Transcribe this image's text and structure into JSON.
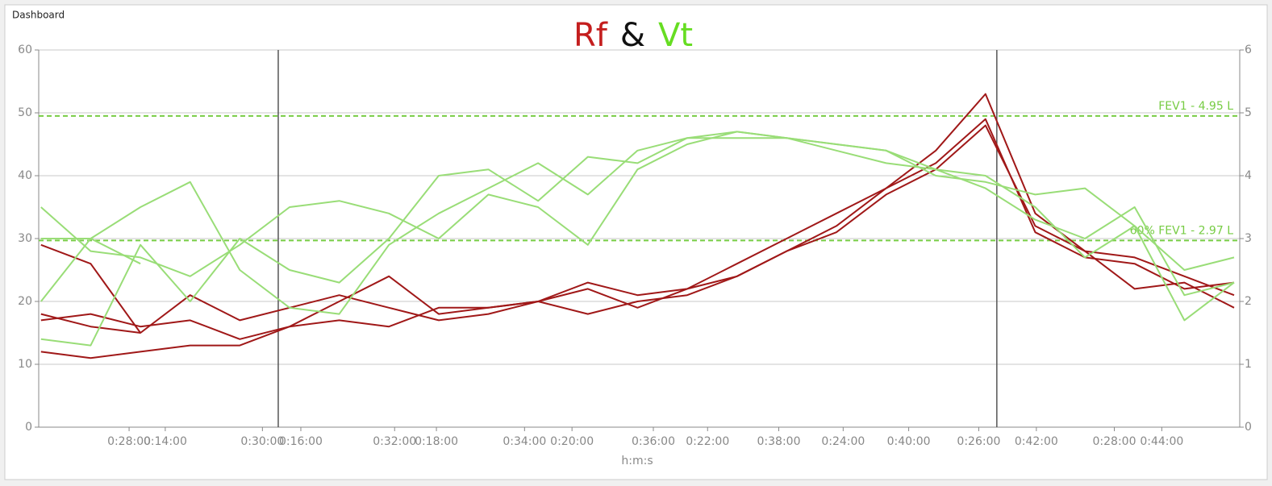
{
  "header": {
    "title": "Dashboard"
  },
  "chart_data": {
    "type": "line",
    "title_parts": [
      {
        "text": "Rf",
        "color": "#c41e1e"
      },
      {
        "text": "&",
        "color": "#111111"
      },
      {
        "text": "Vt",
        "color": "#66dd22"
      }
    ],
    "xlabel": "h:m:s",
    "x": [
      730,
      774,
      818,
      862,
      906,
      950,
      994,
      1038,
      1082,
      1126,
      1170,
      1214,
      1258,
      1302,
      1346,
      1390,
      1434,
      1478,
      1522,
      1566,
      1610,
      1654,
      1698,
      1742,
      1786
    ],
    "xlim": [
      728,
      1791
    ],
    "xticks": [
      {
        "value": 808,
        "label": "0:28:00"
      },
      {
        "value": 840,
        "label": "0:14:00"
      },
      {
        "value": 926,
        "label": "0:30:00"
      },
      {
        "value": 960,
        "label": "0:16:00"
      },
      {
        "value": 1043,
        "label": "0:32:00"
      },
      {
        "value": 1080,
        "label": "0:18:00"
      },
      {
        "value": 1158,
        "label": "0:34:00"
      },
      {
        "value": 1200,
        "label": "0:20:00"
      },
      {
        "value": 1272,
        "label": "0:36:00"
      },
      {
        "value": 1320,
        "label": "0:22:00"
      },
      {
        "value": 1383,
        "label": "0:38:00"
      },
      {
        "value": 1440,
        "label": "0:24:00"
      },
      {
        "value": 1498,
        "label": "0:40:00"
      },
      {
        "value": 1560,
        "label": "0:26:00"
      },
      {
        "value": 1611,
        "label": "0:42:00"
      },
      {
        "value": 1680,
        "label": "0:28:00"
      },
      {
        "value": 1722,
        "label": "0:44:00"
      }
    ],
    "ylim": [
      0,
      60
    ],
    "yticks": [
      0,
      10,
      20,
      30,
      40,
      50,
      60
    ],
    "y2lim": [
      0,
      6
    ],
    "y2ticks": [
      0,
      1,
      2,
      3,
      4,
      5,
      6
    ],
    "grid": true,
    "series": [
      {
        "color": "#a01818",
        "values": [
          29,
          26,
          15,
          21,
          17,
          19,
          21,
          19,
          17,
          18,
          20,
          18,
          20,
          21,
          24,
          28,
          31,
          37,
          41,
          48,
          32,
          28,
          27,
          24,
          21
        ]
      },
      {
        "color": "#a01818",
        "values": [
          17,
          18,
          16,
          17,
          14,
          16,
          17,
          16,
          19,
          19,
          20,
          22,
          19,
          22,
          26,
          30,
          34,
          38,
          44,
          53,
          34,
          28,
          22,
          23,
          19
        ]
      },
      {
        "color": "#a01818",
        "values": [
          12,
          11,
          12,
          13,
          13,
          16,
          20,
          24,
          18,
          19,
          20,
          23,
          21,
          22,
          24,
          28,
          32,
          38,
          42,
          49,
          31,
          27,
          26,
          22,
          23
        ]
      },
      {
        "color": "#a01818",
        "values": [
          18,
          16,
          15,
          null,
          null,
          null,
          null,
          null,
          null,
          null,
          null,
          null,
          null,
          null,
          null,
          null,
          null,
          null,
          null,
          null,
          null,
          null,
          null,
          null,
          null
        ]
      },
      {
        "color": "#99dd77",
        "axis": "y2",
        "values": [
          3.5,
          2.8,
          2.7,
          2.4,
          2.9,
          3.5,
          3.6,
          3.4,
          3.0,
          3.7,
          3.5,
          2.9,
          4.1,
          4.5,
          4.7,
          4.6,
          4.5,
          4.4,
          4.0,
          3.9,
          3.7,
          3.8,
          3.2,
          2.5,
          2.7
        ]
      },
      {
        "color": "#99dd77",
        "axis": "y2",
        "values": [
          1.4,
          1.3,
          2.9,
          2.0,
          3.0,
          2.5,
          2.3,
          3.0,
          4.0,
          4.1,
          3.6,
          4.3,
          4.2,
          4.6,
          4.6,
          4.6,
          4.5,
          4.4,
          4.1,
          3.8,
          3.3,
          3.0,
          3.5,
          2.1,
          2.3
        ]
      },
      {
        "color": "#99dd77",
        "axis": "y2",
        "values": [
          3.0,
          3.0,
          3.5,
          3.9,
          2.5,
          1.9,
          1.8,
          2.9,
          3.4,
          3.8,
          4.2,
          3.7,
          4.4,
          4.6,
          4.7,
          4.6,
          4.4,
          4.2,
          4.1,
          4.0,
          3.5,
          2.7,
          3.2,
          1.7,
          2.3
        ]
      },
      {
        "color": "#99dd77",
        "axis": "y2",
        "values": [
          2.0,
          3.0,
          2.6,
          null,
          null,
          null,
          null,
          null,
          null,
          null,
          null,
          null,
          null,
          null,
          null,
          null,
          null,
          null,
          null,
          null,
          null,
          null,
          null,
          null,
          null
        ]
      }
    ],
    "reference_lines": [
      {
        "value": 4.95,
        "label": "FEV1 - 4.95 L",
        "axis": "y2",
        "color": "#77cc44"
      },
      {
        "value": 2.97,
        "label": "60% FEV1 - 2.97 L",
        "axis": "y2",
        "color": "#77cc44"
      }
    ],
    "cursors": [
      940,
      1576
    ]
  }
}
